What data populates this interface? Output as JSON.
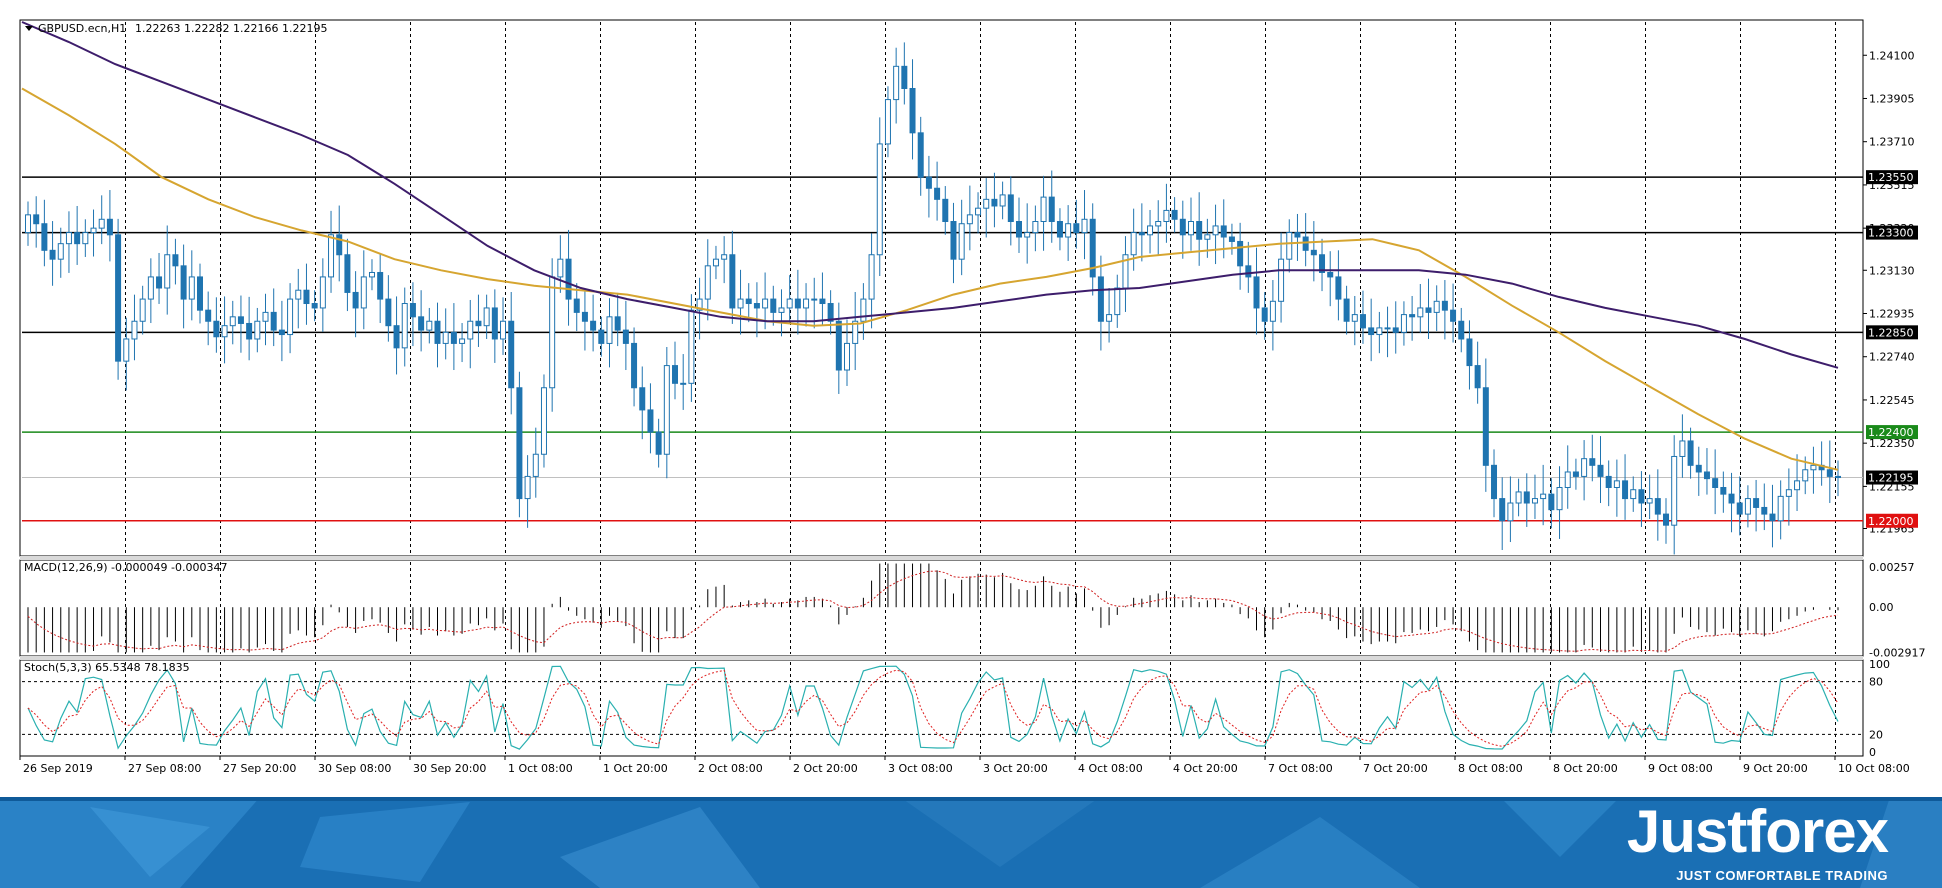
{
  "header": {
    "symbol_label": "GBPUSD.ecn,H1",
    "ohlc": "1.22263 1.22282 1.22166 1.22195"
  },
  "indicators": {
    "macd_label": "MACD(12,26,9) -0.000049 -0.000347",
    "stoch_label": "Stoch(5,3,3) 65.5348 78.1835"
  },
  "brand": {
    "name": "Justforex",
    "tagline": "JUST COMFORTABLE TRADING"
  },
  "colors": {
    "candle": "#1f74b0",
    "ma_fast": "#d6a530",
    "ma_slow": "#3d1d6b",
    "support_green": "#1a8a1a",
    "support_red": "#e01010",
    "resistance": "#000000",
    "stoch_main": "#2ab0b0",
    "stoch_signal": "#e02020",
    "banner": "#1a6fb4"
  },
  "chart_data": [
    {
      "type": "candlestick",
      "symbol": "GBPUSD.ecn",
      "timeframe": "H1",
      "ylim": [
        1.2185,
        1.2425
      ],
      "yticks": [
        "1.24100",
        "1.23905",
        "1.23710",
        "1.23515",
        "1.23320",
        "1.23130",
        "1.22935",
        "1.22740",
        "1.22545",
        "1.22350",
        "1.22155",
        "1.21965"
      ],
      "x_labels": [
        "26 Sep 2019",
        "27 Sep 08:00",
        "27 Sep 20:00",
        "30 Sep 08:00",
        "30 Sep 20:00",
        "1 Oct 08:00",
        "1 Oct 20:00",
        "2 Oct 08:00",
        "2 Oct 20:00",
        "3 Oct 08:00",
        "3 Oct 20:00",
        "4 Oct 08:00",
        "4 Oct 20:00",
        "7 Oct 08:00",
        "7 Oct 20:00",
        "8 Oct 08:00",
        "8 Oct 20:00",
        "9 Oct 08:00",
        "9 Oct 20:00",
        "10 Oct 08:00"
      ],
      "horizontal_levels": [
        {
          "value": 1.2355,
          "label": "1.23550",
          "color": "#000000"
        },
        {
          "value": 1.233,
          "label": "1.23300",
          "color": "#000000"
        },
        {
          "value": 1.2285,
          "label": "1.22850",
          "color": "#000000"
        },
        {
          "value": 1.224,
          "label": "1.22400",
          "color": "#1a8a1a"
        },
        {
          "value": 1.22,
          "label": "1.22000",
          "color": "#e01010"
        }
      ],
      "current_price": {
        "value": 1.22195,
        "label": "1.22195"
      },
      "series": [
        {
          "values": [
            1.233,
            1.2338,
            1.2334,
            1.2322,
            1.2318,
            1.2325,
            1.233,
            1.2325,
            1.233,
            1.2332,
            1.2336,
            1.2329,
            1.2272,
            1.2282,
            1.229,
            1.23,
            1.231,
            1.2305,
            1.232,
            1.2315,
            1.23,
            1.231,
            1.2295,
            1.229,
            1.2283,
            1.2288,
            1.2292,
            1.2289,
            1.2282,
            1.229,
            1.2294,
            1.2286,
            1.2284,
            1.23,
            1.2304,
            1.2298,
            1.2296,
            1.231,
            1.2329,
            1.232,
            1.2303,
            1.2296,
            1.231,
            1.2312,
            1.23,
            1.2288,
            1.2278,
            1.2298,
            1.2292,
            1.2286,
            1.229,
            1.228,
            1.2285,
            1.228,
            1.2282,
            1.229,
            1.2288,
            1.2296,
            1.2282,
            1.229,
            1.226,
            1.221,
            1.222,
            1.223,
            1.226,
            1.231,
            1.2318,
            1.23,
            1.2294,
            1.229,
            1.2286,
            1.228,
            1.2292,
            1.2286,
            1.228,
            1.226,
            1.225,
            1.224,
            1.223,
            1.227,
            1.2262,
            1.2262,
            1.2295,
            1.23,
            1.2315,
            1.2318,
            1.232,
            1.2296,
            1.23,
            1.2298,
            1.2296,
            1.23,
            1.2294,
            1.2296,
            1.23,
            1.2296,
            1.23,
            1.23,
            1.2298,
            1.229,
            1.2268,
            1.228,
            1.229,
            1.23,
            1.232,
            1.237,
            1.239,
            1.2405,
            1.2395,
            1.2375,
            1.2355,
            1.235,
            1.2345,
            1.2335,
            1.2318,
            1.2334,
            1.2338,
            1.2341,
            1.2345,
            1.2342,
            1.2347,
            1.2335,
            1.2328,
            1.233,
            1.2335,
            1.2346,
            1.2335,
            1.2328,
            1.2334,
            1.233,
            1.2336,
            1.231,
            1.229,
            1.2293,
            1.2305,
            1.232,
            1.233,
            1.2329,
            1.2333,
            1.2335,
            1.234,
            1.2336,
            1.2329,
            1.2335,
            1.2327,
            1.2329,
            1.2333,
            1.2328,
            1.2326,
            1.2315,
            1.231,
            1.2296,
            1.229,
            1.2299,
            1.2318,
            1.233,
            1.2328,
            1.2322,
            1.232,
            1.2312,
            1.231,
            1.23,
            1.229,
            1.2293,
            1.2287,
            1.2284,
            1.2287,
            1.2287,
            1.2285,
            1.2293,
            1.2292,
            1.2296,
            1.2294,
            1.2299,
            1.2295,
            1.229,
            1.2282,
            1.227,
            1.226,
            1.2225,
            1.221,
            1.22,
            1.2208,
            1.2213,
            1.2208,
            1.221,
            1.2212,
            1.2205,
            1.2215,
            1.2222,
            1.222,
            1.2228,
            1.2225,
            1.222,
            1.2215,
            1.2218,
            1.221,
            1.2214,
            1.2208,
            1.221,
            1.2203,
            1.2198,
            1.2229,
            1.2236,
            1.2225,
            1.2222,
            1.2219,
            1.2215,
            1.2212,
            1.2208,
            1.2203,
            1.221,
            1.2206,
            1.2203,
            1.22,
            1.2211,
            1.2214,
            1.2218,
            1.2223,
            1.2225,
            1.2223,
            1.222
          ],
          "name": ""
        },
        {
          "values": [
            1.2338,
            1.2334,
            1.2322,
            1.2318,
            1.2325,
            1.233,
            1.2325,
            1.233,
            1.2332,
            1.2336,
            1.2329,
            1.2272,
            1.2282,
            1.229,
            1.23,
            1.231,
            1.2305,
            1.232,
            1.2315,
            1.23,
            1.231,
            1.2295,
            1.229,
            1.2283,
            1.2288,
            1.2292,
            1.2289,
            1.2282,
            1.229,
            1.2294,
            1.2286,
            1.2284,
            1.23,
            1.2304,
            1.2298,
            1.2296,
            1.231,
            1.2329,
            1.232,
            1.2303,
            1.2296,
            1.231,
            1.2312,
            1.23,
            1.2288,
            1.2278,
            1.2298,
            1.2292,
            1.2286,
            1.229,
            1.228,
            1.2285,
            1.228,
            1.2282,
            1.229,
            1.2288,
            1.2296,
            1.2282,
            1.229,
            1.226,
            1.221,
            1.222,
            1.223,
            1.226,
            1.231,
            1.2318,
            1.23,
            1.2294,
            1.229,
            1.2286,
            1.228,
            1.2292,
            1.2286,
            1.228,
            1.226,
            1.225,
            1.224,
            1.223,
            1.227,
            1.2262,
            1.2262,
            1.2295,
            1.23,
            1.2315,
            1.2318,
            1.232,
            1.2296,
            1.23,
            1.2298,
            1.2296,
            1.23,
            1.2294,
            1.2296,
            1.23,
            1.2296,
            1.23,
            1.23,
            1.2298,
            1.229,
            1.2268,
            1.228,
            1.229,
            1.23,
            1.232,
            1.237,
            1.239,
            1.2405,
            1.2395,
            1.2375,
            1.2355,
            1.235,
            1.2345,
            1.2335,
            1.2318,
            1.2334,
            1.2338,
            1.2341,
            1.2345,
            1.2342,
            1.2347,
            1.2335,
            1.2328,
            1.233,
            1.2335,
            1.2346,
            1.2335,
            1.2328,
            1.2334,
            1.233,
            1.2336,
            1.231,
            1.229,
            1.2293,
            1.2305,
            1.232,
            1.233,
            1.2329,
            1.2333,
            1.2335,
            1.234,
            1.2336,
            1.2329,
            1.2335,
            1.2327,
            1.2329,
            1.2333,
            1.2328,
            1.2326,
            1.2315,
            1.231,
            1.2296,
            1.229,
            1.2299,
            1.2318,
            1.233,
            1.2328,
            1.2322,
            1.232,
            1.2312,
            1.231,
            1.23,
            1.229,
            1.2293,
            1.2287,
            1.2284,
            1.2287,
            1.2287,
            1.2285,
            1.2293,
            1.2292,
            1.2296,
            1.2294,
            1.2299,
            1.2295,
            1.229,
            1.2282,
            1.227,
            1.226,
            1.2225,
            1.221,
            1.22,
            1.2208,
            1.2213,
            1.2208,
            1.221,
            1.2212,
            1.2205,
            1.2215,
            1.2222,
            1.222,
            1.2228,
            1.2225,
            1.222,
            1.2215,
            1.2218,
            1.221,
            1.2214,
            1.2208,
            1.221,
            1.2203,
            1.2198,
            1.2229,
            1.2236,
            1.2225,
            1.2222,
            1.2219,
            1.2215,
            1.2212,
            1.2208,
            1.2203,
            1.221,
            1.2206,
            1.2203,
            1.22,
            1.2211,
            1.2214,
            1.2218,
            1.2223,
            1.2225,
            1.2223,
            1.222,
            1.22195
          ],
          "name": ""
        }
      ]
    },
    {
      "type": "line",
      "name": "moving averages",
      "series": [
        {
          "name": "",
          "color": "#d6a530",
          "values": [
            1.2395,
            1.2383,
            1.237,
            1.2355,
            1.2345,
            1.2337,
            1.2331,
            1.2326,
            1.2318,
            1.2313,
            1.2309,
            1.2306,
            1.2304,
            1.2302,
            1.2298,
            1.2294,
            1.229,
            1.2288,
            1.2289,
            1.2295,
            1.2302,
            1.2307,
            1.231,
            1.2314,
            1.2319,
            1.2321,
            1.2323,
            1.2325,
            1.2326,
            1.2327,
            1.2322,
            1.231,
            1.2297,
            1.2285,
            1.2272,
            1.226,
            1.2248,
            1.2237,
            1.2228,
            1.2223
          ]
        },
        {
          "name": "",
          "color": "#3d1d6b",
          "values": [
            1.2425,
            1.2416,
            1.2406,
            1.2398,
            1.239,
            1.2382,
            1.2374,
            1.2365,
            1.2352,
            1.2338,
            1.2324,
            1.2313,
            1.2305,
            1.23,
            1.2296,
            1.2292,
            1.229,
            1.229,
            1.2292,
            1.2294,
            1.2296,
            1.2299,
            1.2302,
            1.2304,
            1.2305,
            1.2308,
            1.2311,
            1.2313,
            1.2313,
            1.2313,
            1.2313,
            1.2311,
            1.2307,
            1.2301,
            1.2296,
            1.2292,
            1.2288,
            1.2282,
            1.2275,
            1.2269
          ]
        }
      ]
    },
    {
      "type": "bar",
      "name": "MACD",
      "ylim": [
        -0.003,
        0.0029
      ],
      "yticks": [
        "0.00257",
        "0.00",
        "-0.002917"
      ]
    },
    {
      "type": "line",
      "name": "Stoch",
      "ylim": [
        0,
        100
      ],
      "yticks": [
        "100",
        "80",
        "20",
        "0"
      ]
    }
  ]
}
